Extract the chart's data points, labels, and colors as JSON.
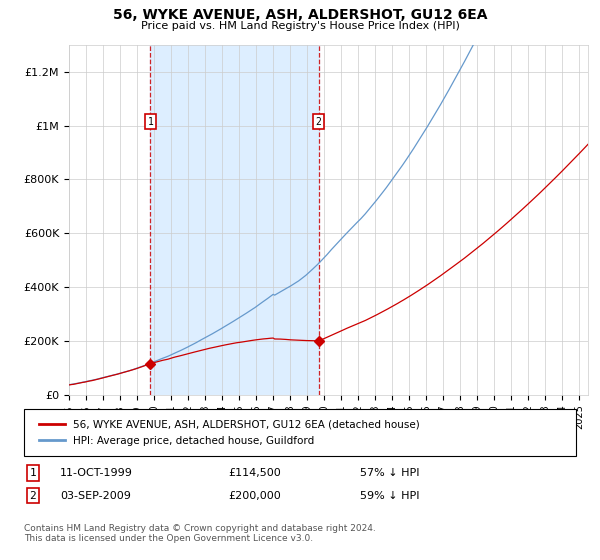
{
  "title": "56, WYKE AVENUE, ASH, ALDERSHOT, GU12 6EA",
  "subtitle": "Price paid vs. HM Land Registry's House Price Index (HPI)",
  "legend_line1": "56, WYKE AVENUE, ASH, ALDERSHOT, GU12 6EA (detached house)",
  "legend_line2": "HPI: Average price, detached house, Guildford",
  "footnote": "Contains HM Land Registry data © Crown copyright and database right 2024.\nThis data is licensed under the Open Government Licence v3.0.",
  "sale1_date": "11-OCT-1999",
  "sale1_price": 114500,
  "sale1_label": "57% ↓ HPI",
  "sale2_date": "03-SEP-2009",
  "sale2_price": 200000,
  "sale2_label": "59% ↓ HPI",
  "sale1_year": 1999.78,
  "sale2_year": 2009.67,
  "ylim": [
    0,
    1300000
  ],
  "xlim_left": 1995.0,
  "xlim_right": 2025.5,
  "red_color": "#cc0000",
  "blue_color": "#6699cc",
  "shade_color": "#ddeeff",
  "background_color": "#ffffff",
  "grid_color": "#cccccc"
}
